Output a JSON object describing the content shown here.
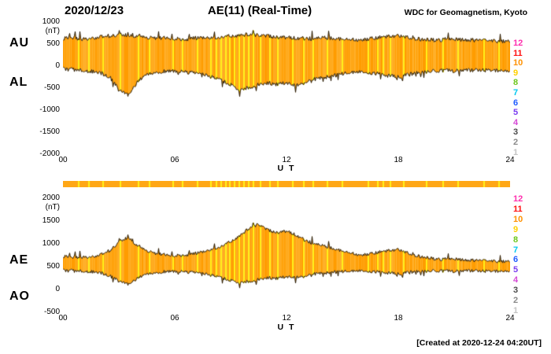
{
  "header": {
    "date": "2020/12/23",
    "title": "AE(11) (Real-Time)",
    "org": "WDC for Geomagnetism, Kyoto"
  },
  "footer": {
    "created": "[Created at 2020-12-24 04:20UT]"
  },
  "colors": {
    "band_shades": [
      "#ff9c00",
      "#ffa716",
      "#ffb02a"
    ],
    "streak": "#fff11c",
    "outline": "#201400"
  },
  "legend": {
    "items": [
      {
        "label": "12",
        "color": "#ff2fae"
      },
      {
        "label": "11",
        "color": "#ff1111"
      },
      {
        "label": "10",
        "color": "#ff9100"
      },
      {
        "label": "9",
        "color": "#ffd000"
      },
      {
        "label": "8",
        "color": "#6cc61b"
      },
      {
        "label": "7",
        "color": "#00c8f0"
      },
      {
        "label": "6",
        "color": "#1f5bff"
      },
      {
        "label": "5",
        "color": "#7a3cf0"
      },
      {
        "label": "4",
        "color": "#d548d5"
      },
      {
        "label": "3",
        "color": "#4a4a4a"
      },
      {
        "label": "2",
        "color": "#8a8a8a"
      },
      {
        "label": "1",
        "color": "#c4c4c4"
      }
    ]
  },
  "status_bar": {
    "streaks": [
      0.8,
      1.35,
      2.1,
      3.05,
      4.0,
      4.6,
      5.9,
      6.4,
      7.2,
      7.9,
      8.2,
      8.45,
      8.7,
      8.95,
      9.2,
      9.45,
      9.7,
      9.95,
      10.2,
      10.6,
      11.1,
      11.5,
      12.3,
      12.9,
      13.4,
      14.2,
      15.0,
      16.4,
      16.9,
      17.2,
      17.55,
      18.3,
      19.5,
      20.4,
      21.2,
      22.6,
      23.4
    ]
  },
  "chart_data": [
    {
      "type": "area",
      "title": "AU / AL indices band",
      "left_labels": [
        "AU",
        "AL"
      ],
      "ylabel": "(nT)",
      "xlabel": "U T",
      "xlim": [
        0,
        24
      ],
      "ylim": [
        -2000,
        1000
      ],
      "ytick_values": [
        1000,
        500,
        0,
        -500,
        -1000,
        -1500,
        -2000
      ],
      "ytick_labels": [
        "1000",
        "500",
        "0",
        "-500",
        "-1000",
        "-1500",
        "-2000"
      ],
      "xtick_values": [
        0,
        6,
        12,
        18,
        24
      ],
      "xtick_labels": [
        "00",
        "06",
        "12",
        "18",
        "24"
      ],
      "x_step_hours": 0.5,
      "noise_amp": 45,
      "spike_amp": 170,
      "series": [
        {
          "name": "AU",
          "values": [
            620,
            650,
            600,
            640,
            660,
            680,
            720,
            700,
            680,
            650,
            630,
            640,
            620,
            600,
            630,
            650,
            640,
            660,
            680,
            700,
            720,
            700,
            680,
            660,
            650,
            640,
            630,
            620,
            640,
            630,
            620,
            610,
            600,
            620,
            650,
            670,
            680,
            650,
            620,
            600,
            590,
            600,
            610,
            600,
            590,
            580,
            570,
            560,
            580
          ]
        },
        {
          "name": "AL",
          "values": [
            -60,
            -80,
            -100,
            -120,
            -150,
            -250,
            -550,
            -650,
            -350,
            -200,
            -140,
            -120,
            -110,
            -130,
            -160,
            -200,
            -250,
            -320,
            -420,
            -560,
            -480,
            -420,
            -380,
            -420,
            -380,
            -450,
            -350,
            -300,
            -260,
            -220,
            -180,
            -150,
            -130,
            -150,
            -180,
            -220,
            -250,
            -200,
            -160,
            -130,
            -110,
            -100,
            -110,
            -100,
            -95,
            -90,
            -100,
            -110,
            -130
          ]
        }
      ],
      "streaks": [
        0.8,
        1.35,
        2.1,
        3.05,
        4.0,
        4.6,
        5.9,
        6.4,
        7.2,
        7.9,
        8.2,
        8.45,
        8.7,
        8.95,
        9.2,
        9.45,
        9.7,
        9.95,
        10.2,
        10.6,
        11.1,
        11.5,
        12.3,
        12.9,
        13.4,
        14.2,
        15.0,
        16.4,
        16.9,
        17.2,
        17.55,
        18.3,
        19.5,
        20.4,
        21.2,
        22.6,
        23.4
      ]
    },
    {
      "type": "area",
      "title": "AE / AO indices band",
      "left_labels": [
        "AE",
        "AO"
      ],
      "ylabel": "(nT)",
      "xlabel": "U T",
      "xlim": [
        0,
        24
      ],
      "ylim": [
        -500,
        2000
      ],
      "ytick_values": [
        2000,
        1500,
        1000,
        500,
        0,
        -500
      ],
      "ytick_labels": [
        "2000",
        "1500",
        "1000",
        "500",
        "0",
        "-500"
      ],
      "xtick_values": [
        0,
        6,
        12,
        18,
        24
      ],
      "xtick_labels": [
        "00",
        "06",
        "12",
        "18",
        "24"
      ],
      "x_step_hours": 0.5,
      "noise_amp": 35,
      "spike_amp": 140,
      "series": [
        {
          "name": "AE",
          "values": [
            720,
            710,
            700,
            720,
            760,
            850,
            1050,
            1150,
            950,
            850,
            780,
            760,
            740,
            750,
            780,
            830,
            880,
            950,
            1050,
            1180,
            1350,
            1430,
            1300,
            1250,
            1280,
            1200,
            1080,
            1000,
            950,
            900,
            850,
            800,
            760,
            780,
            820,
            850,
            870,
            800,
            740,
            700,
            670,
            660,
            670,
            650,
            640,
            630,
            620,
            610,
            630
          ]
        },
        {
          "name": "AO",
          "values": [
            420,
            410,
            400,
            390,
            370,
            300,
            180,
            120,
            250,
            330,
            370,
            390,
            400,
            390,
            370,
            340,
            310,
            260,
            200,
            140,
            180,
            220,
            260,
            240,
            280,
            260,
            310,
            340,
            360,
            380,
            390,
            400,
            410,
            400,
            380,
            360,
            340,
            370,
            390,
            400,
            410,
            405,
            400,
            405,
            410,
            405,
            400,
            395,
            390
          ]
        }
      ],
      "streaks": [
        0.8,
        1.35,
        2.1,
        3.05,
        4.0,
        4.6,
        5.9,
        6.4,
        7.2,
        7.9,
        8.2,
        8.45,
        8.7,
        8.95,
        9.2,
        9.45,
        9.7,
        9.95,
        10.2,
        10.6,
        11.1,
        11.5,
        12.3,
        12.9,
        13.4,
        14.2,
        15.0,
        16.4,
        16.9,
        17.2,
        17.55,
        18.3,
        19.5,
        20.4,
        21.2,
        22.6,
        23.4
      ]
    }
  ]
}
